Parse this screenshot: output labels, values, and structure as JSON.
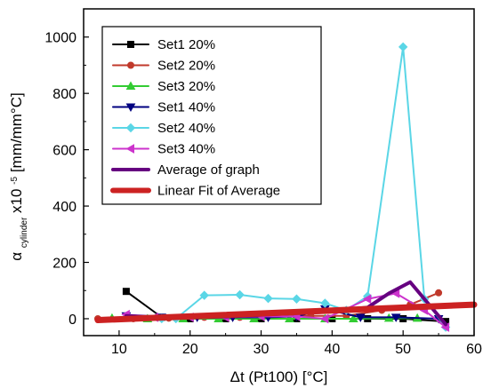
{
  "chart_data": {
    "type": "line",
    "xlabel": "Δt (Pt100) [°C]",
    "ylabel_parts": {
      "alpha": "α",
      "sub": "cylinder",
      "mult": "x10",
      "exp": "-5",
      "unit": " [mm/mm°C]"
    },
    "xlim": [
      5,
      60
    ],
    "ylim": [
      -60,
      1100
    ],
    "xticks": [
      10,
      20,
      30,
      40,
      50,
      60
    ],
    "yticks": [
      0,
      200,
      400,
      600,
      800,
      1000
    ],
    "grid": false,
    "legend_position": "top-left",
    "series": [
      {
        "name": "Set1 20%",
        "color": "#000000",
        "marker": "square",
        "width": 2,
        "x": [
          11,
          16,
          20,
          25,
          30,
          35,
          40,
          45,
          50,
          56
        ],
        "y": [
          97,
          5,
          0,
          0,
          0,
          0,
          0,
          0,
          0,
          -10
        ]
      },
      {
        "name": "Set2 20%",
        "color": "#c0392b",
        "marker": "circle",
        "width": 2,
        "x": [
          7,
          12,
          17,
          22,
          27,
          32,
          37,
          42,
          47,
          51,
          55
        ],
        "y": [
          0,
          0,
          2,
          5,
          5,
          10,
          10,
          10,
          30,
          50,
          92
        ]
      },
      {
        "name": "Set3 20%",
        "color": "#33cc33",
        "marker": "triangle-up",
        "width": 2,
        "x": [
          9,
          14,
          19,
          24,
          29,
          34,
          39,
          43,
          48,
          52
        ],
        "y": [
          2,
          0,
          0,
          0,
          0,
          0,
          0,
          0,
          2,
          2
        ]
      },
      {
        "name": "Set1 40%",
        "color": "#000080",
        "marker": "triangle-down",
        "width": 2,
        "x": [
          11,
          16,
          21,
          26,
          31,
          35,
          39,
          44,
          49,
          55
        ],
        "y": [
          10,
          5,
          5,
          5,
          5,
          8,
          35,
          5,
          5,
          0
        ]
      },
      {
        "name": "Set2 40%",
        "color": "#5ad6e6",
        "marker": "diamond",
        "width": 2,
        "x": [
          11,
          16,
          18,
          22,
          27,
          31,
          35,
          39,
          42,
          45,
          50,
          53,
          56
        ],
        "y": [
          5,
          0,
          0,
          83,
          85,
          72,
          70,
          55,
          30,
          80,
          965,
          70,
          -30
        ]
      },
      {
        "name": "Set3 40%",
        "color": "#cc33cc",
        "marker": "triangle-left",
        "width": 2,
        "x": [
          11,
          15,
          20,
          25,
          30,
          35,
          39,
          45,
          49,
          53,
          56
        ],
        "y": [
          15,
          5,
          5,
          5,
          8,
          8,
          0,
          70,
          90,
          30,
          -30
        ]
      },
      {
        "name": "Average of graph",
        "color": "#660080",
        "marker": "none",
        "width": 4,
        "x": [
          11,
          16,
          21,
          26,
          31,
          35,
          40,
          45,
          48,
          51,
          56
        ],
        "y": [
          10,
          5,
          5,
          8,
          15,
          20,
          25,
          40,
          90,
          130,
          -20
        ]
      },
      {
        "name": "Linear Fit of Average",
        "color": "#cc2222",
        "marker": "none",
        "width": 7,
        "x": [
          7,
          60
        ],
        "y": [
          -5,
          50
        ]
      }
    ]
  }
}
